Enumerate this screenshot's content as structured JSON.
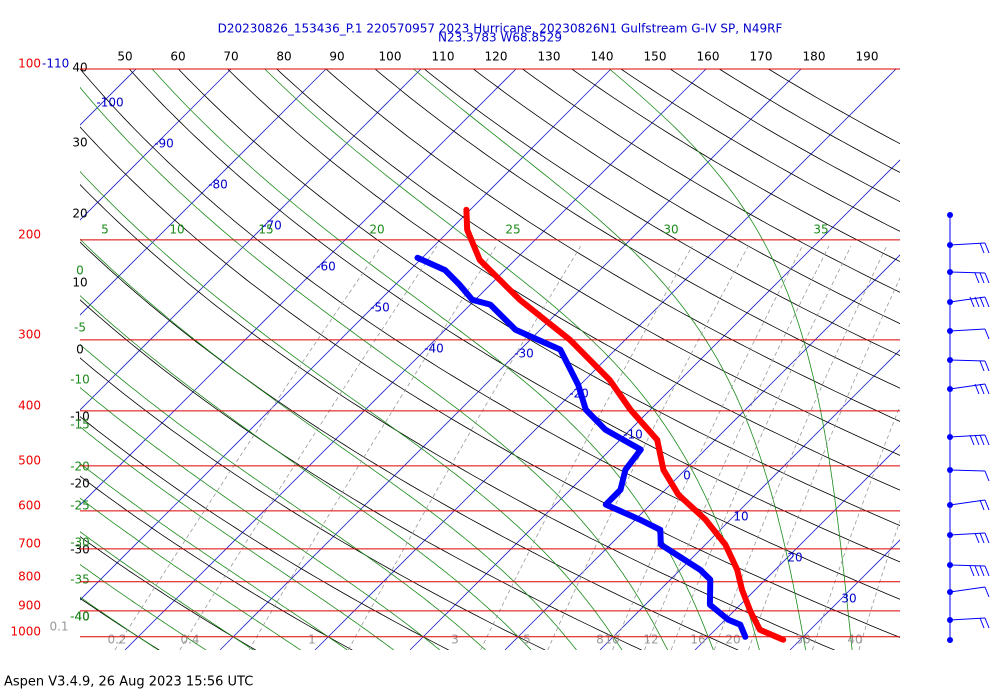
{
  "chart_data": {
    "type": "skewt",
    "title": [
      "D20230826_153436_P.1 220570957 2023 Hurricane, 20230826N1 Gulfstream G-IV SP, N49RF",
      "N23.3783 W68.8529"
    ],
    "footer": "Aspen V3.4.9, 26 Aug 2023  15:56 UTC",
    "ylim": [
      1055,
      100
    ],
    "log_y": true,
    "yticks": [
      100,
      200,
      300,
      400,
      500,
      600,
      700,
      800,
      900,
      1000
    ],
    "isotherms": [
      -110,
      -100,
      -90,
      -80,
      -70,
      -60,
      -50,
      -40,
      -30,
      -20,
      -10,
      0,
      10,
      20,
      30
    ],
    "dry_adiabats_top": [
      50,
      60,
      70,
      80,
      90,
      100,
      110,
      120,
      130,
      140,
      150,
      160,
      170,
      180,
      190
    ],
    "dry_adiabats_left": [
      40,
      30,
      20,
      10,
      0,
      -10,
      -20,
      -30,
      -40
    ],
    "moist_adiabats_top": [
      5,
      10,
      15,
      20,
      25,
      30,
      35
    ],
    "moist_adiabats_left": [
      0,
      -5,
      -10,
      -15,
      -20,
      -25,
      -30,
      -35,
      -40
    ],
    "mixing_ratios": [
      0.1,
      0.2,
      0.4,
      1,
      3,
      5,
      8,
      10,
      12,
      16,
      20,
      30,
      40
    ],
    "series": [
      {
        "color": "#ff0000",
        "pressure": [
          1012,
          972,
          903,
          826,
          762,
          688,
          622,
          562,
          508,
          450,
          398,
          353,
          300,
          255,
          217,
          192,
          177
        ],
        "values": [
          28.2,
          24.7,
          21.8,
          18.6,
          16.0,
          12.1,
          7.4,
          1.9,
          -2.3,
          -6.1,
          -12.1,
          -17.4,
          -25.8,
          -35.3,
          -43.7,
          -48.2,
          -50.4
        ]
      },
      {
        "color": "#0000ff",
        "pressure": [
          1000,
          952,
          933,
          878,
          793,
          762,
          723,
          688,
          648,
          622,
          585,
          551,
          508,
          468,
          432,
          398,
          360,
          312,
          288,
          260,
          255,
          240,
          226,
          215
        ],
        "values": [
          23.9,
          22.1,
          20.3,
          16.8,
          14.2,
          12.1,
          8.6,
          5.3,
          3.7,
          0.5,
          -4.7,
          -4.7,
          -6.3,
          -6.8,
          -12.6,
          -16.8,
          -20.2,
          -25.8,
          -32.6,
          -37.9,
          -40.3,
          -43.2,
          -46.3,
          -50.5
        ]
      }
    ]
  }
}
